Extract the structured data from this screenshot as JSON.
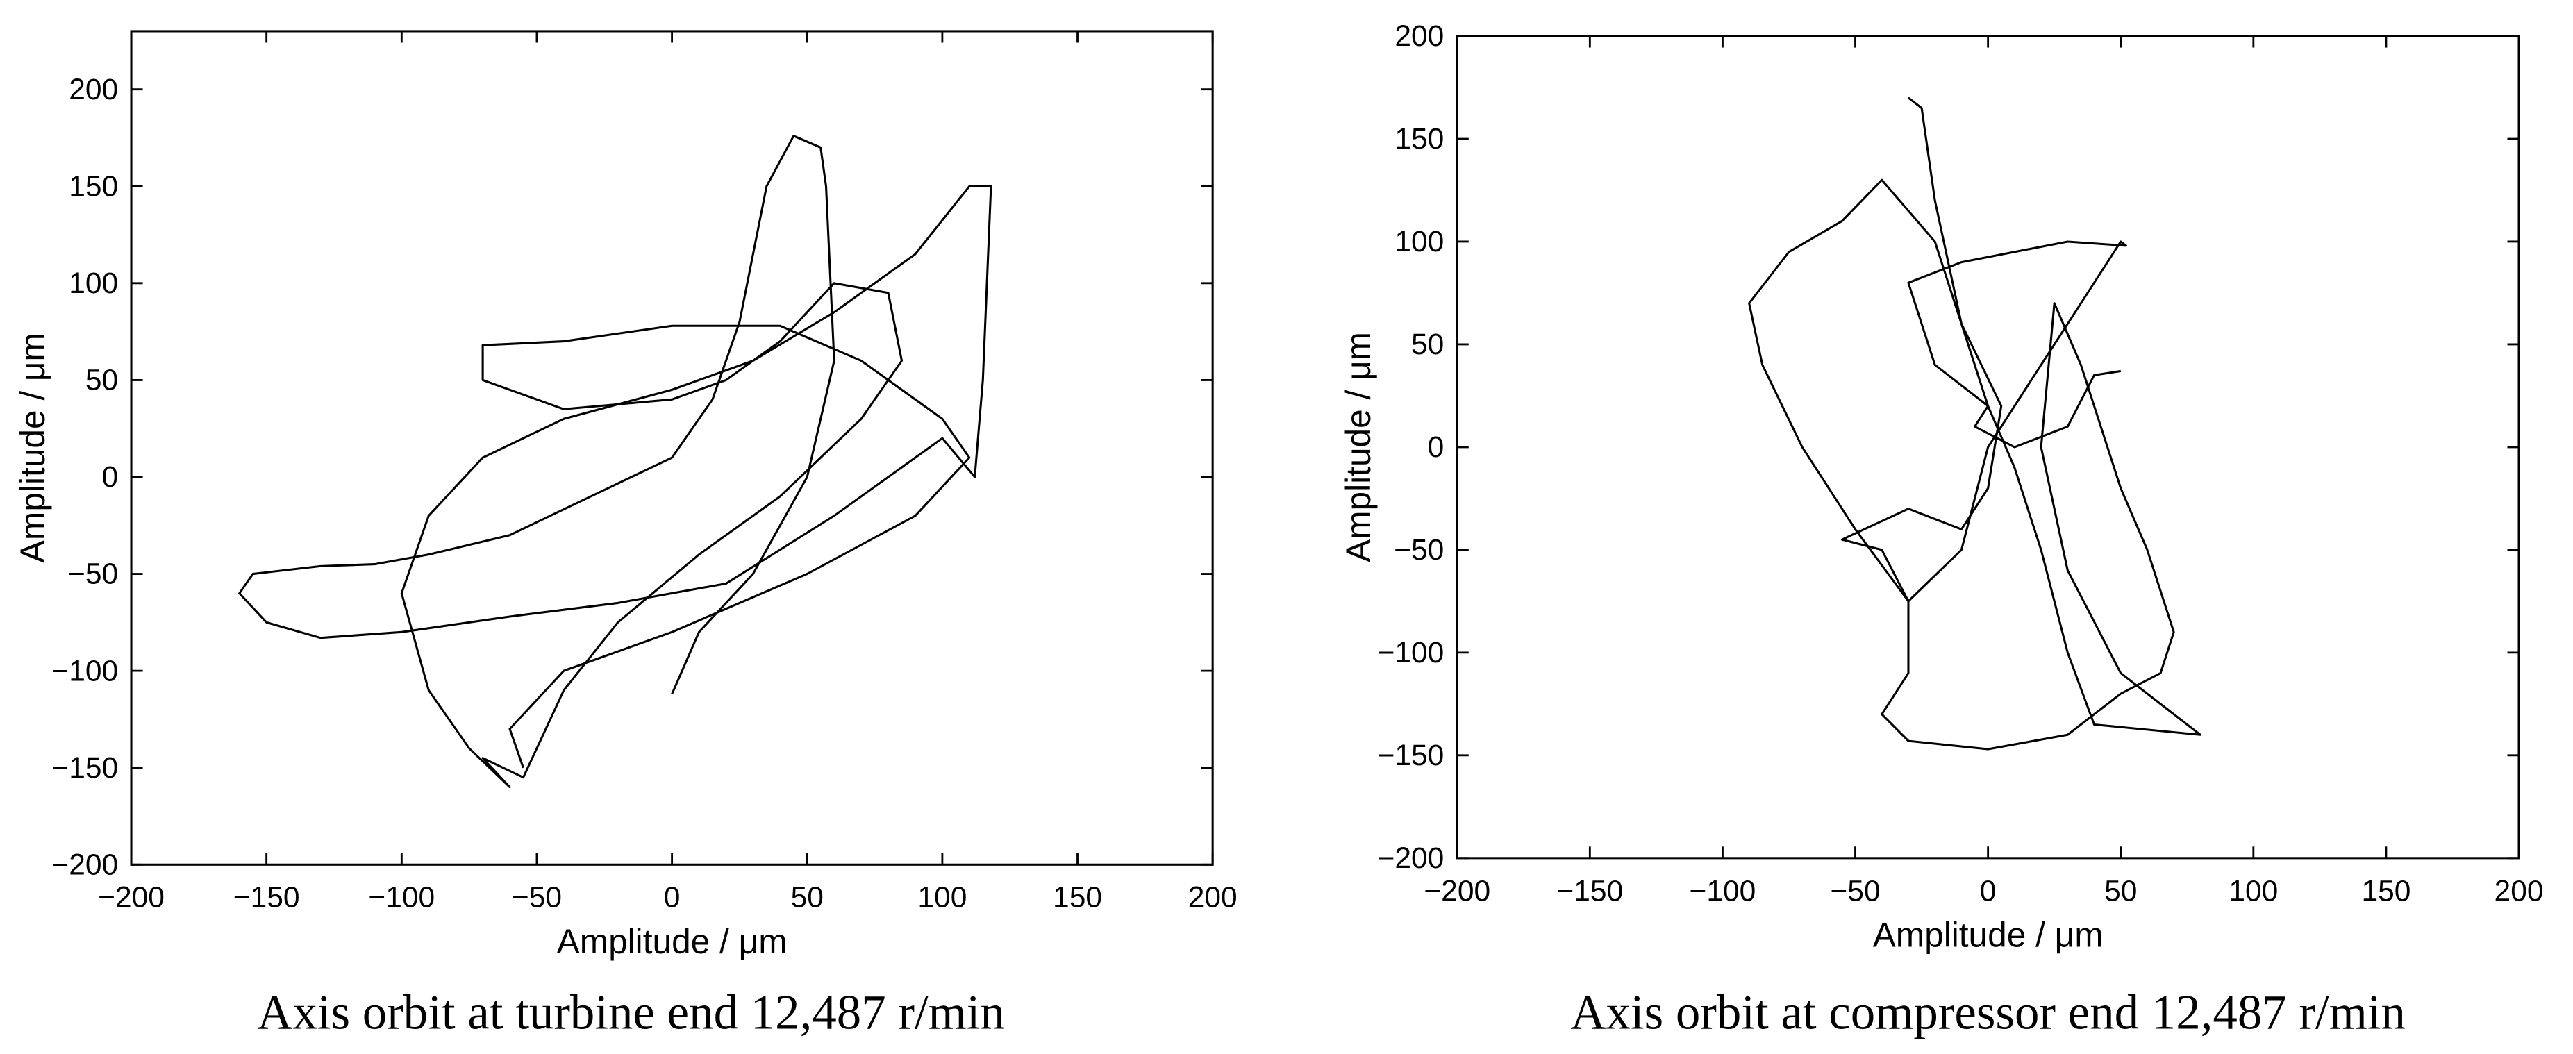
{
  "chart_data": [
    {
      "type": "line",
      "title": "Axis orbit at turbine end 12,487 r/min",
      "xlabel": "Amplitude / μm",
      "ylabel": "Amplitude / μm",
      "xlim": [
        -200,
        200
      ],
      "ylim": [
        -200,
        230
      ],
      "xticks": [
        {
          "value": -200,
          "label": "−200"
        },
        {
          "value": -150,
          "label": "−150"
        },
        {
          "value": -100,
          "label": "−100"
        },
        {
          "value": -50,
          "label": "−50"
        },
        0,
        50,
        100,
        150,
        200
      ],
      "yticks": [
        {
          "value": -200,
          "label": "−200"
        },
        {
          "value": -150,
          "label": "−150"
        },
        {
          "value": -100,
          "label": "−100"
        },
        {
          "value": -50,
          "label": "−50"
        },
        0,
        50,
        100,
        150,
        200
      ],
      "x": [
        0,
        10,
        30,
        50,
        60,
        57,
        55,
        45,
        35,
        25,
        15,
        0,
        -30,
        -60,
        -90,
        -110,
        -130,
        -155,
        -160,
        -150,
        -130,
        -100,
        -60,
        -20,
        20,
        60,
        100,
        112,
        115,
        118,
        110,
        90,
        60,
        30,
        0,
        -40,
        -70,
        -90,
        -100,
        -90,
        -75,
        -60,
        -70,
        -55,
        -40,
        -20,
        10,
        40,
        70,
        85,
        80,
        60,
        40,
        20,
        0,
        -40,
        -70,
        -70,
        -40,
        0,
        40,
        70,
        100,
        110,
        90,
        50,
        0,
        -40,
        -60,
        -55
      ],
      "series": [
        {
          "color": "#000000",
          "values": [
            -112,
            -80,
            -50,
            0,
            60,
            150,
            170,
            176,
            150,
            80,
            40,
            10,
            -10,
            -30,
            -40,
            -45,
            -46,
            -50,
            -60,
            -75,
            -83,
            -80,
            -72,
            -65,
            -55,
            -20,
            20,
            0,
            50,
            150,
            150,
            115,
            85,
            60,
            45,
            30,
            10,
            -20,
            -60,
            -110,
            -140,
            -160,
            -145,
            -155,
            -110,
            -75,
            -40,
            -10,
            30,
            60,
            95,
            100,
            70,
            50,
            40,
            35,
            50,
            68,
            70,
            78,
            78,
            60,
            30,
            10,
            -20,
            -50,
            -80,
            -100,
            -130,
            -150
          ]
        }
      ]
    },
    {
      "type": "line",
      "title": "Axis orbit at compressor end 12,487 r/min",
      "xlabel": "Amplitude / μm",
      "ylabel": "Amplitude / μm",
      "xlim": [
        -200,
        200
      ],
      "ylim": [
        -200,
        200
      ],
      "xticks": [
        {
          "value": -200,
          "label": "−200"
        },
        {
          "value": -150,
          "label": "−150"
        },
        {
          "value": -100,
          "label": "−100"
        },
        {
          "value": -50,
          "label": "−50"
        },
        0,
        50,
        100,
        150,
        200
      ],
      "yticks": [
        {
          "value": -200,
          "label": "−200"
        },
        {
          "value": -150,
          "label": "−150"
        },
        {
          "value": -100,
          "label": "−100"
        },
        {
          "value": -50,
          "label": "−50"
        },
        0,
        50,
        100,
        150,
        200
      ],
      "x": [
        -30,
        -25,
        -20,
        -10,
        0,
        10,
        20,
        30,
        40,
        80,
        50,
        30,
        20,
        25,
        35,
        50,
        60,
        70,
        65,
        50,
        30,
        0,
        -30,
        -40,
        -30,
        -30,
        -40,
        -55,
        -30,
        -10,
        0,
        5,
        -10,
        -20,
        -40,
        -55,
        -75,
        -90,
        -85,
        -70,
        -50,
        -30,
        -10,
        0,
        20,
        40,
        50,
        52,
        30,
        -10,
        -30,
        -20,
        0,
        -5,
        10,
        30,
        40,
        50
      ],
      "series": [
        {
          "color": "#000000",
          "values": [
            170,
            165,
            120,
            60,
            20,
            -10,
            -50,
            -100,
            -135,
            -140,
            -110,
            -60,
            0,
            70,
            40,
            -20,
            -50,
            -90,
            -110,
            -120,
            -140,
            -147,
            -143,
            -130,
            -110,
            -75,
            -50,
            -45,
            -30,
            -40,
            -20,
            20,
            60,
            100,
            130,
            110,
            95,
            70,
            40,
            0,
            -40,
            -75,
            -50,
            0,
            40,
            80,
            100,
            98,
            100,
            90,
            80,
            40,
            20,
            10,
            0,
            10,
            35,
            37
          ]
        }
      ]
    }
  ]
}
